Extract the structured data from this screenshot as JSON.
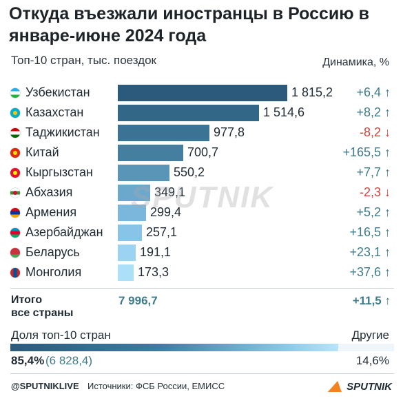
{
  "title": "Откуда въезжали иностранцы в Россию в январе-июне 2024 года",
  "subtitle": "Топ-10 стран, тыс. поездок",
  "dynamics_header": "Динамика, %",
  "watermark": "SPUTNIK",
  "chart_data": {
    "type": "bar",
    "orientation": "horizontal",
    "title": "Откуда въезжали иностранцы в Россию в январе-июне 2024 года",
    "subtitle": "Топ-10 стран, тыс. поездок",
    "categories": [
      "Узбекистан",
      "Казахстан",
      "Таджикистан",
      "Китай",
      "Кыргызстан",
      "Абхазия",
      "Армения",
      "Азербайджан",
      "Беларусь",
      "Монголия"
    ],
    "values": [
      1815.2,
      1514.6,
      977.8,
      700.7,
      550.2,
      349.1,
      299.4,
      257.1,
      191.1,
      173.3
    ],
    "value_labels": [
      "1 815,2",
      "1 514,6",
      "977,8",
      "700,7",
      "550,2",
      "349,1",
      "299,4",
      "257,1",
      "191,1",
      "173,3"
    ],
    "dynamics": [
      6.4,
      8.2,
      -8.2,
      165.5,
      7.7,
      -2.3,
      5.2,
      16.5,
      23.1,
      37.6
    ],
    "dynamics_labels": [
      "+6,4 ↑",
      "+8,2 ↑",
      "-8,2 ↓",
      "+165,5 ↑",
      "+7,7 ↑",
      "-2,3 ↓",
      "+5,2 ↑",
      "+16,5 ↑",
      "+23,1 ↑",
      "+37,6 ↑"
    ],
    "bar_colors": [
      "#2c5a7c",
      "#336787",
      "#3a7393",
      "#457fa0",
      "#5a95b8",
      "#6ca8cc",
      "#7bb7dc",
      "#88c4e8",
      "#9cd3f2",
      "#ace0f9"
    ],
    "xlim": [
      0,
      1815.2
    ]
  },
  "flags": [
    {
      "name": "uzbekistan-flag-icon",
      "stripes": [
        "#1eb3e6",
        "#ffffff",
        "#1eb53a"
      ]
    },
    {
      "name": "kazakhstan-flag-icon",
      "stripes": [
        "#00afca"
      ],
      "emblem": "#fec50c"
    },
    {
      "name": "tajikistan-flag-icon",
      "stripes": [
        "#cc0000",
        "#ffffff",
        "#006600"
      ]
    },
    {
      "name": "china-flag-icon",
      "stripes": [
        "#de2910"
      ],
      "emblem": "#ffde00"
    },
    {
      "name": "kyrgyzstan-flag-icon",
      "stripes": [
        "#e8112d"
      ],
      "emblem": "#ffef00"
    },
    {
      "name": "abkhazia-flag-icon",
      "stripes": [
        "#ffffff",
        "#3a8a3a",
        "#ffffff"
      ],
      "emblem": "#c8102e"
    },
    {
      "name": "armenia-flag-icon",
      "stripes": [
        "#d90012",
        "#0033a0",
        "#f2a800"
      ]
    },
    {
      "name": "azerbaijan-flag-icon",
      "stripes": [
        "#0092bc",
        "#e4002b",
        "#00af66"
      ]
    },
    {
      "name": "belarus-flag-icon",
      "stripes": [
        "#c8313e",
        "#c8313e",
        "#4aa657"
      ]
    },
    {
      "name": "mongolia-flag-icon",
      "stripes": [
        "#c4272f",
        "#015197",
        "#c4272f"
      ],
      "vertical": true
    }
  ],
  "total": {
    "label": "Итого все страны",
    "value": "7 996,7",
    "dynamics": "+11,5 ↑"
  },
  "share": {
    "label": "Доля топ-10 стран",
    "other_label": "Другие",
    "top10_fraction": 0.854,
    "top10_percent": "85,4%",
    "top10_abs": "(6 828,4)",
    "other_percent": "14,6%"
  },
  "footer": {
    "handle": "@SPUTNIKLIVE",
    "source": "Источники: ФСБ России, ЕМИСС",
    "logo": "SPUTNIK"
  }
}
